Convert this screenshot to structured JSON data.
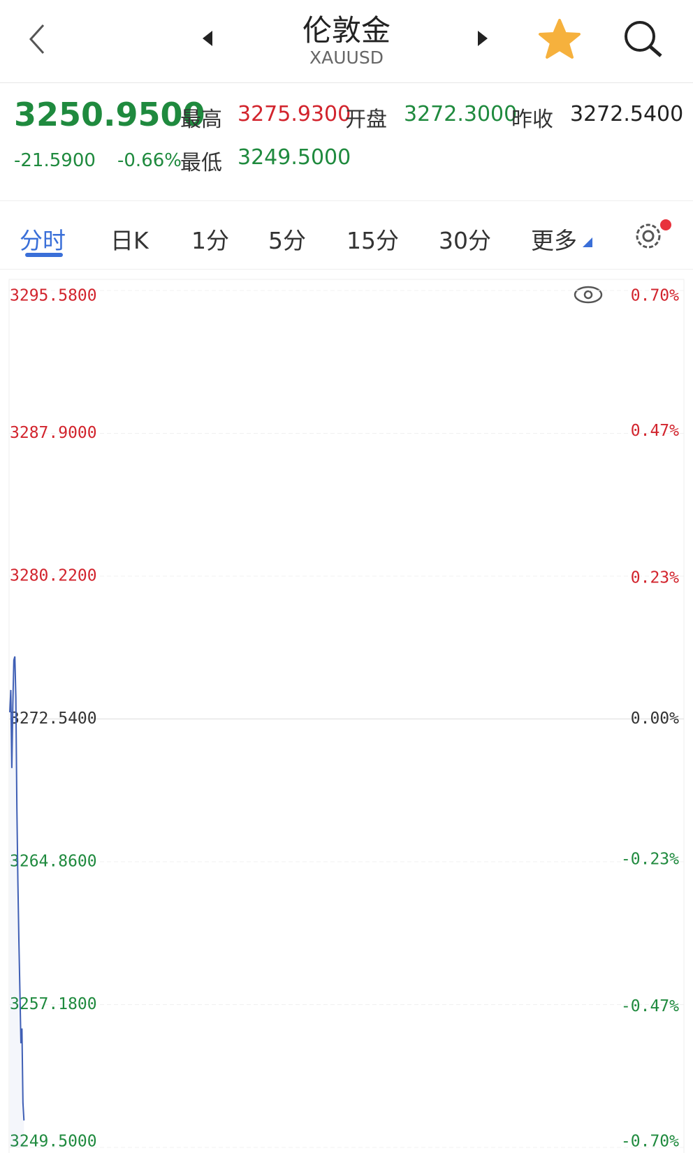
{
  "header": {
    "title": "伦敦金",
    "subtitle": "XAUUSD"
  },
  "quote": {
    "price": "3250.9500",
    "change": "-21.5900",
    "change_pct": "-0.66%",
    "high_label": "最高",
    "high": "3275.9300",
    "open_label": "开盘",
    "open": "3272.3000",
    "prev_close_label": "昨收",
    "prev_close": "3272.5400",
    "low_label": "最低",
    "low": "3249.5000"
  },
  "tabs": [
    "分时",
    "日K",
    "1分",
    "5分",
    "15分",
    "30分",
    "更多"
  ],
  "chart_data": {
    "type": "line",
    "series": [
      {
        "color": "#3f5fb5",
        "values": [
          3272.9,
          3274.1,
          3269.9,
          3273.3,
          3275.7,
          3275.9,
          3273.7,
          3267.8,
          3263.8,
          3260.6,
          3257.9,
          3255.1,
          3255.9,
          3251.9,
          3250.95
        ]
      }
    ],
    "ylim": [
      3249.5,
      3295.58
    ],
    "yticks": [
      {
        "value": 3249.5,
        "label": "3249.5000"
      },
      {
        "value": 3257.18,
        "label": "3257.1800"
      },
      {
        "value": 3264.86,
        "label": "3264.8600"
      },
      {
        "value": 3272.54,
        "label": "3272.5400"
      },
      {
        "value": 3280.22,
        "label": "3280.2200"
      },
      {
        "value": 3287.9,
        "label": "3287.9000"
      },
      {
        "value": 3295.58,
        "label": "3295.5800"
      }
    ],
    "y2lim": [
      -0.7,
      0.7
    ],
    "y2ticks": [
      {
        "value": -0.7,
        "label": "-0.70%"
      },
      {
        "value": -0.47,
        "label": "-0.47%"
      },
      {
        "value": -0.23,
        "label": "-0.23%"
      },
      {
        "value": 0,
        "label": "0.00%"
      },
      {
        "value": 0.23,
        "label": "0.23%"
      },
      {
        "value": 0.47,
        "label": "0.47%"
      },
      {
        "value": 0.7,
        "label": "0.70%"
      }
    ],
    "grid": true
  }
}
